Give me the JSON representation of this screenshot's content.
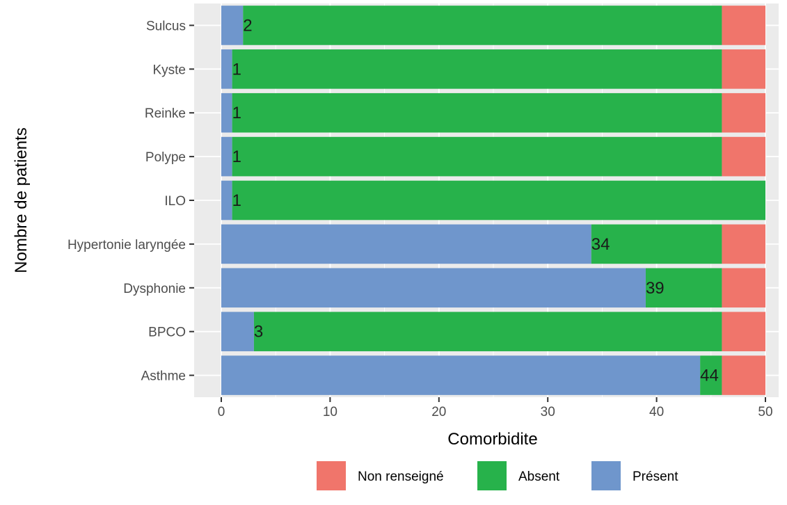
{
  "chart_data": {
    "type": "bar",
    "orientation": "horizontal",
    "stacked": true,
    "xlabel": "Comorbidite",
    "ylabel": "Nombre de patients",
    "xlim": [
      0,
      50
    ],
    "xticks": [
      0,
      10,
      20,
      30,
      40,
      50
    ],
    "grid": true,
    "legend_position": "bottom",
    "categories": [
      "Asthme",
      "BPCO",
      "Dysphonie",
      "Hypertonie laryngée",
      "ILO",
      "Polype",
      "Reinke",
      "Kyste",
      "Sulcus"
    ],
    "series": [
      {
        "name": "Présent",
        "color": "#6f96cc",
        "values": [
          44,
          3,
          39,
          34,
          1,
          1,
          1,
          1,
          2
        ]
      },
      {
        "name": "Absent",
        "color": "#27b24b",
        "values": [
          2,
          43,
          7,
          12,
          49,
          45,
          45,
          45,
          44
        ]
      },
      {
        "name": "Non renseigné",
        "color": "#f0756b",
        "values": [
          4,
          4,
          4,
          4,
          0,
          4,
          4,
          4,
          4
        ]
      }
    ],
    "bar_labels": [
      44,
      3,
      39,
      34,
      1,
      1,
      1,
      1,
      2
    ],
    "legend_order": [
      "Non renseigné",
      "Absent",
      "Présent"
    ]
  }
}
